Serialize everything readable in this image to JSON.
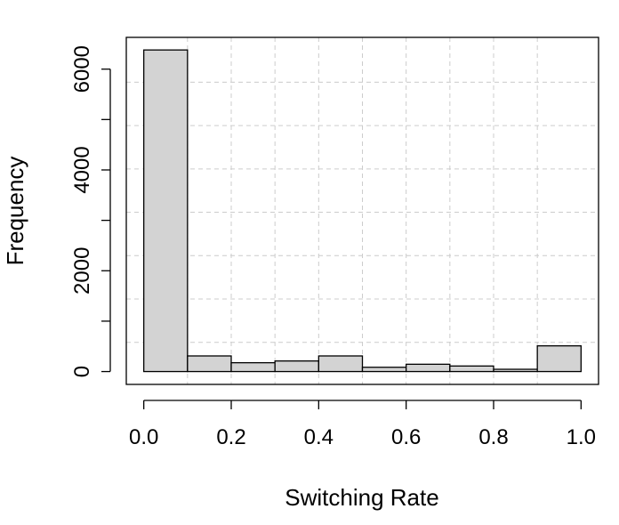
{
  "chart_data": {
    "type": "bar",
    "subtype": "histogram",
    "title": "",
    "xlabel": "Switching Rate",
    "ylabel": "Frequency",
    "bins": [
      {
        "from": 0.0,
        "to": 0.1,
        "count": 6380
      },
      {
        "from": 0.1,
        "to": 0.2,
        "count": 310
      },
      {
        "from": 0.2,
        "to": 0.3,
        "count": 175
      },
      {
        "from": 0.3,
        "to": 0.4,
        "count": 210
      },
      {
        "from": 0.4,
        "to": 0.5,
        "count": 310
      },
      {
        "from": 0.5,
        "to": 0.6,
        "count": 85
      },
      {
        "from": 0.6,
        "to": 0.7,
        "count": 145
      },
      {
        "from": 0.7,
        "to": 0.8,
        "count": 110
      },
      {
        "from": 0.8,
        "to": 0.9,
        "count": 45
      },
      {
        "from": 0.9,
        "to": 1.0,
        "count": 510
      }
    ],
    "xlim": [
      -0.04,
      1.04
    ],
    "ylim": [
      -255,
      6630
    ],
    "xticks": [
      0.0,
      0.2,
      0.4,
      0.6,
      0.8,
      1.0
    ],
    "xtick_labels": [
      "0.0",
      "0.2",
      "0.4",
      "0.6",
      "0.8",
      "1.0"
    ],
    "yticks": [
      0,
      1000,
      2000,
      3000,
      4000,
      5000,
      6000
    ],
    "ytick_labels": [
      "0",
      "",
      "2000",
      "",
      "4000",
      "",
      "6000"
    ],
    "x_gridlines": [
      0.1,
      0.2,
      0.3,
      0.4,
      0.5,
      0.6,
      0.7,
      0.8,
      0.9
    ],
    "y_gridlines": [
      580,
      1440,
      2300,
      3160,
      4020,
      4880,
      5740
    ],
    "grid": true,
    "grid_style": "dashed",
    "legend": "none",
    "colors": {
      "bar_fill": "#d3d3d3",
      "bar_stroke": "#000000",
      "grid": "#cccccc",
      "axis": "#000000"
    }
  }
}
